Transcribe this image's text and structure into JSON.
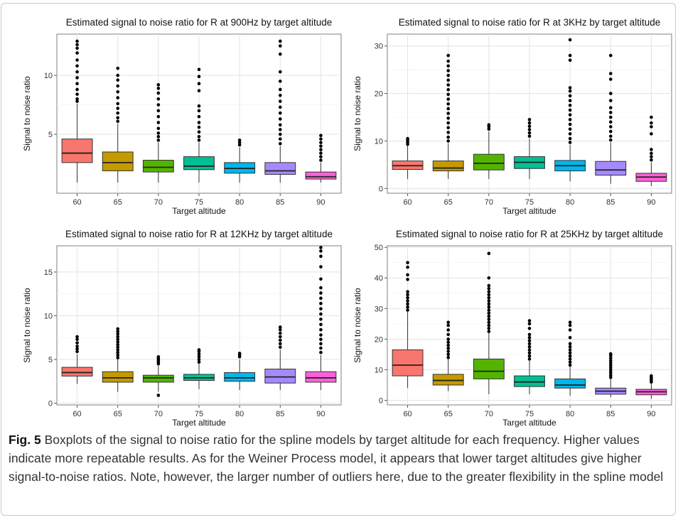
{
  "colors": {
    "boxes": [
      "#F8766D",
      "#C49A00",
      "#53B400",
      "#00C094",
      "#00B6EB",
      "#A58AFF",
      "#FB61D7"
    ],
    "panel_background": "#ffffff",
    "grid": "#ebebeb",
    "outlier": "#000000"
  },
  "caption": {
    "label": "Fig. 5",
    "text": "Boxplots of the signal to noise ratio for the spline models by target altitude for each frequency. Higher values indicate more repeatable results. As for the Weiner Process model, it appears that lower target altitudes give higher signal-to-noise ratios. Note, however, the larger number of outliers here, due to the greater flexibility in the spline model"
  },
  "chart_data": [
    {
      "type": "boxplot",
      "title": "Estimated signal to noise ratio for R at 900Hz by target altitude",
      "xlabel": "Target altitude",
      "ylabel": "Signal to noise ratio",
      "categories": [
        "60",
        "65",
        "70",
        "75",
        "80",
        "85",
        "90"
      ],
      "yticks": [
        5,
        10
      ],
      "ylim": [
        0,
        13.5
      ],
      "grid": true,
      "boxes": [
        {
          "lower_whisker": 0.9,
          "q1": 2.6,
          "median": 3.4,
          "q3": 4.6,
          "upper_whisker": 7.6,
          "outliers": [
            7.8,
            8.0,
            8.4,
            8.8,
            9.3,
            9.8,
            10.3,
            10.8,
            11.3,
            11.9,
            12.3,
            12.6,
            12.9
          ]
        },
        {
          "lower_whisker": 0.9,
          "q1": 1.9,
          "median": 2.6,
          "q3": 3.5,
          "upper_whisker": 5.9,
          "outliers": [
            6.1,
            6.4,
            6.8,
            7.2,
            7.6,
            8.1,
            8.6,
            9.1,
            9.6,
            10.0,
            10.6
          ]
        },
        {
          "lower_whisker": 0.9,
          "q1": 1.8,
          "median": 2.2,
          "q3": 2.8,
          "upper_whisker": 4.3,
          "outliers": [
            4.5,
            4.8,
            5.1,
            5.5,
            6.0,
            6.5,
            7.0,
            7.5,
            8.0,
            8.5,
            8.9,
            9.2
          ]
        },
        {
          "lower_whisker": 0.9,
          "q1": 2.0,
          "median": 2.3,
          "q3": 3.1,
          "upper_whisker": 4.3,
          "outliers": [
            4.5,
            4.8,
            5.2,
            5.6,
            6.0,
            6.5,
            7.0,
            7.4,
            8.7,
            9.3,
            9.9,
            10.5
          ]
        },
        {
          "lower_whisker": 0.9,
          "q1": 1.7,
          "median": 2.1,
          "q3": 2.6,
          "upper_whisker": 3.9,
          "outliers": [
            4.1,
            4.3,
            4.5
          ]
        },
        {
          "lower_whisker": 0.9,
          "q1": 1.6,
          "median": 1.9,
          "q3": 2.6,
          "upper_whisker": 4.0,
          "outliers": [
            4.2,
            4.6,
            5.0,
            5.4,
            5.8,
            6.3,
            6.8,
            7.3,
            7.8,
            8.3,
            8.8,
            9.5,
            10.3,
            11.8,
            12.5,
            12.9
          ]
        },
        {
          "lower_whisker": 0.9,
          "q1": 1.2,
          "median": 1.4,
          "q3": 1.8,
          "upper_whisker": 2.6,
          "outliers": [
            2.8,
            3.1,
            3.4,
            3.7,
            4.0,
            4.3,
            4.6,
            4.9
          ]
        }
      ]
    },
    {
      "type": "boxplot",
      "title": "Estimated signal to noise ratio for R at 3KHz by target altitude",
      "xlabel": "Target altitude",
      "ylabel": "Signal to noise ratio",
      "categories": [
        "60",
        "65",
        "70",
        "75",
        "80",
        "85",
        "90"
      ],
      "yticks": [
        0,
        10,
        20,
        30
      ],
      "ylim": [
        -1,
        32.5
      ],
      "grid": true,
      "boxes": [
        {
          "lower_whisker": 2.0,
          "q1": 4.0,
          "median": 4.8,
          "q3": 5.8,
          "upper_whisker": 9.0,
          "outliers": [
            9.3,
            9.7,
            10.1,
            10.5
          ]
        },
        {
          "lower_whisker": 2.0,
          "q1": 3.7,
          "median": 4.3,
          "q3": 5.8,
          "upper_whisker": 9.5,
          "outliers": [
            10.0,
            10.8,
            11.8,
            12.8,
            13.8,
            14.8,
            15.8,
            16.8,
            17.8,
            18.8,
            19.8,
            20.8,
            21.8,
            22.8,
            23.8,
            24.8,
            25.8,
            26.8,
            28.0
          ]
        },
        {
          "lower_whisker": 2.0,
          "q1": 3.9,
          "median": 5.3,
          "q3": 7.2,
          "upper_whisker": 12.0,
          "outliers": [
            12.5,
            13.0,
            13.4
          ]
        },
        {
          "lower_whisker": 2.0,
          "q1": 4.2,
          "median": 5.5,
          "q3": 6.7,
          "upper_whisker": 10.5,
          "outliers": [
            11.0,
            11.7,
            12.4,
            13.1,
            13.8,
            14.5
          ]
        },
        {
          "lower_whisker": 1.5,
          "q1": 3.7,
          "median": 4.8,
          "q3": 5.9,
          "upper_whisker": 9.2,
          "outliers": [
            9.7,
            10.5,
            11.5,
            12.5,
            13.5,
            14.5,
            15.5,
            16.5,
            17.5,
            18.5,
            19.5,
            20.5,
            21.2,
            27.0,
            28.0,
            31.3
          ]
        },
        {
          "lower_whisker": 1.0,
          "q1": 2.8,
          "median": 3.9,
          "q3": 5.7,
          "upper_whisker": 9.7,
          "outliers": [
            10.2,
            11.0,
            12.0,
            13.0,
            14.0,
            15.0,
            16.0,
            17.0,
            18.5,
            20.0,
            23.0,
            24.2,
            28.0
          ]
        },
        {
          "lower_whisker": 0.5,
          "q1": 1.5,
          "median": 2.4,
          "q3": 3.2,
          "upper_whisker": 5.5,
          "outliers": [
            6.0,
            6.7,
            7.4,
            8.2,
            11.5,
            13.0,
            13.8,
            15.0
          ]
        }
      ]
    },
    {
      "type": "boxplot",
      "title": "Estimated signal to noise ratio for R at 12KHz by target altitude",
      "xlabel": "Target altitude",
      "ylabel": "Signal to noise ratio",
      "categories": [
        "60",
        "65",
        "70",
        "75",
        "80",
        "85",
        "90"
      ],
      "yticks": [
        0,
        5,
        10,
        15
      ],
      "ylim": [
        -0.2,
        18
      ],
      "grid": true,
      "boxes": [
        {
          "lower_whisker": 2.2,
          "q1": 3.1,
          "median": 3.5,
          "q3": 4.1,
          "upper_whisker": 5.6,
          "outliers": [
            5.9,
            6.2,
            6.5,
            6.9,
            7.3,
            7.6
          ]
        },
        {
          "lower_whisker": 1.3,
          "q1": 2.4,
          "median": 2.9,
          "q3": 3.6,
          "upper_whisker": 5.0,
          "outliers": [
            5.2,
            5.5,
            5.8,
            6.1,
            6.4,
            6.7,
            7.0,
            7.3,
            7.6,
            7.9,
            8.2,
            8.5
          ]
        },
        {
          "lower_whisker": 1.3,
          "q1": 2.4,
          "median": 2.9,
          "q3": 3.2,
          "upper_whisker": 4.3,
          "outliers": [
            0.9,
            4.5,
            4.7,
            4.9,
            5.1,
            5.3
          ]
        },
        {
          "lower_whisker": 1.6,
          "q1": 2.6,
          "median": 2.9,
          "q3": 3.3,
          "upper_whisker": 4.5,
          "outliers": [
            4.7,
            5.0,
            5.3,
            5.6,
            5.9,
            6.1
          ]
        },
        {
          "lower_whisker": 1.5,
          "q1": 2.5,
          "median": 2.9,
          "q3": 3.5,
          "upper_whisker": 5.0,
          "outliers": [
            5.3,
            5.5,
            5.7
          ]
        },
        {
          "lower_whisker": 1.5,
          "q1": 2.3,
          "median": 3.0,
          "q3": 3.9,
          "upper_whisker": 6.1,
          "outliers": [
            6.4,
            6.8,
            7.2,
            7.6,
            8.0,
            8.4,
            8.7
          ]
        },
        {
          "lower_whisker": 1.5,
          "q1": 2.4,
          "median": 2.9,
          "q3": 3.6,
          "upper_whisker": 5.5,
          "outliers": [
            5.8,
            6.3,
            6.8,
            7.3,
            7.8,
            8.4,
            9.0,
            9.6,
            10.2,
            10.8,
            11.4,
            12.0,
            12.6,
            13.2,
            14.2,
            15.6,
            16.8,
            17.4,
            17.8
          ]
        }
      ]
    },
    {
      "type": "boxplot",
      "title": "Estimated signal to noise ratio for R at 25KHz by target altitude",
      "xlabel": "Target altitude",
      "ylabel": "Signal to noise ratio",
      "categories": [
        "60",
        "65",
        "70",
        "75",
        "80",
        "85",
        "90"
      ],
      "yticks": [
        0,
        10,
        20,
        30,
        40,
        50
      ],
      "ylim": [
        -1.5,
        50.5
      ],
      "grid": true,
      "boxes": [
        {
          "lower_whisker": 4.0,
          "q1": 8.0,
          "median": 11.5,
          "q3": 16.5,
          "upper_whisker": 29.0,
          "outliers": [
            29.5,
            30.5,
            31.5,
            32.5,
            33.5,
            34.5,
            35.5,
            39.5,
            41.0,
            43.5,
            45.0
          ]
        },
        {
          "lower_whisker": 3.0,
          "q1": 5.0,
          "median": 6.5,
          "q3": 8.5,
          "upper_whisker": 13.5,
          "outliers": [
            14.0,
            15.0,
            16.0,
            17.0,
            18.0,
            19.0,
            20.0,
            21.5,
            23.0,
            24.5,
            25.5
          ]
        },
        {
          "lower_whisker": 2.0,
          "q1": 7.0,
          "median": 9.5,
          "q3": 13.5,
          "upper_whisker": 22.0,
          "outliers": [
            22.5,
            23.5,
            24.5,
            25.5,
            26.5,
            27.5,
            28.5,
            29.5,
            30.5,
            31.5,
            32.5,
            33.5,
            34.5,
            35.5,
            36.5,
            37.5,
            40.0,
            48.0
          ]
        },
        {
          "lower_whisker": 2.0,
          "q1": 4.5,
          "median": 6.0,
          "q3": 8.0,
          "upper_whisker": 13.0,
          "outliers": [
            13.5,
            14.5,
            15.5,
            16.5,
            17.5,
            18.5,
            19.5,
            20.5,
            21.5,
            23.5,
            25.0,
            26.0
          ]
        },
        {
          "lower_whisker": 1.5,
          "q1": 4.0,
          "median": 5.0,
          "q3": 7.0,
          "upper_whisker": 11.0,
          "outliers": [
            11.5,
            12.5,
            13.5,
            14.5,
            15.5,
            16.5,
            17.5,
            18.5,
            20.5,
            23.0,
            24.5,
            25.5
          ]
        },
        {
          "lower_whisker": 1.0,
          "q1": 2.0,
          "median": 3.0,
          "q3": 4.0,
          "upper_whisker": 7.0,
          "outliers": [
            7.5,
            8.2,
            9.0,
            9.8,
            10.6,
            11.4,
            12.2,
            13.0,
            13.8,
            14.6,
            15.2
          ]
        },
        {
          "lower_whisker": 0.5,
          "q1": 1.8,
          "median": 2.8,
          "q3": 3.6,
          "upper_whisker": 5.5,
          "outliers": [
            6.0,
            6.5,
            7.0,
            7.5,
            8.0
          ]
        }
      ]
    }
  ]
}
